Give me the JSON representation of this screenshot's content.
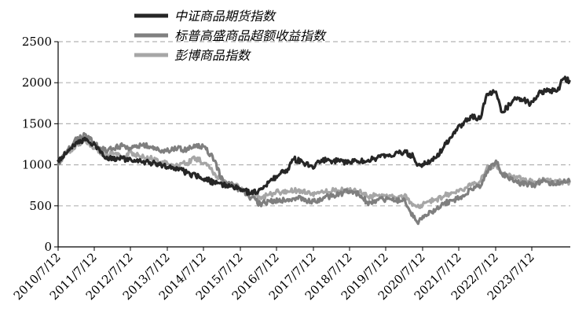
{
  "chart_data": {
    "type": "line",
    "title": "",
    "xlabel": "",
    "ylabel": "",
    "ylim": [
      0,
      2500
    ],
    "y_ticks": [
      0,
      500,
      1000,
      1500,
      2000,
      2500
    ],
    "x_tick_labels": [
      "2010/7/12",
      "2011/7/12",
      "2012/7/12",
      "2013/7/12",
      "2014/7/12",
      "2015/7/12",
      "2016/7/12",
      "2017/7/12",
      "2018/7/12",
      "2019/7/12",
      "2020/7/12",
      "2021/7/12",
      "2022/7/12",
      "2023/7/12"
    ],
    "grid": "horizontal dashed",
    "legend_position": "top-center",
    "series": [
      {
        "name": "中证商品期货指数",
        "color": "#262626",
        "points": [
          [
            "2010/7/12",
            1050
          ],
          [
            "2010/10/12",
            1150
          ],
          [
            "2011/1/12",
            1280
          ],
          [
            "2011/4/12",
            1300
          ],
          [
            "2011/7/12",
            1250
          ],
          [
            "2011/10/12",
            1100
          ],
          [
            "2012/1/12",
            1060
          ],
          [
            "2012/4/12",
            1080
          ],
          [
            "2012/7/12",
            1050
          ],
          [
            "2012/10/12",
            1040
          ],
          [
            "2013/1/12",
            1030
          ],
          [
            "2013/4/12",
            1000
          ],
          [
            "2013/7/12",
            960
          ],
          [
            "2013/10/12",
            960
          ],
          [
            "2014/1/12",
            900
          ],
          [
            "2014/4/12",
            860
          ],
          [
            "2014/7/12",
            830
          ],
          [
            "2014/10/12",
            780
          ],
          [
            "2015/1/12",
            760
          ],
          [
            "2015/4/12",
            740
          ],
          [
            "2015/7/12",
            700
          ],
          [
            "2015/10/12",
            650
          ],
          [
            "2016/1/12",
            700
          ],
          [
            "2016/4/12",
            800
          ],
          [
            "2016/7/12",
            870
          ],
          [
            "2016/10/12",
            950
          ],
          [
            "2016/12/12",
            1070
          ],
          [
            "2017/3/12",
            1030
          ],
          [
            "2017/6/12",
            980
          ],
          [
            "2017/9/12",
            1060
          ],
          [
            "2017/12/12",
            1050
          ],
          [
            "2018/3/12",
            1040
          ],
          [
            "2018/6/12",
            1030
          ],
          [
            "2018/9/12",
            1040
          ],
          [
            "2018/12/12",
            1050
          ],
          [
            "2019/3/12",
            1080
          ],
          [
            "2019/6/12",
            1120
          ],
          [
            "2019/9/12",
            1130
          ],
          [
            "2019/12/12",
            1160
          ],
          [
            "2020/3/12",
            1100
          ],
          [
            "2020/4/20",
            990
          ],
          [
            "2020/7/12",
            1010
          ],
          [
            "2020/10/12",
            1080
          ],
          [
            "2021/1/12",
            1220
          ],
          [
            "2021/4/12",
            1380
          ],
          [
            "2021/7/12",
            1500
          ],
          [
            "2021/10/12",
            1580
          ],
          [
            "2022/1/12",
            1570
          ],
          [
            "2022/3/12",
            1860
          ],
          [
            "2022/6/12",
            1890
          ],
          [
            "2022/8/12",
            1640
          ],
          [
            "2022/11/12",
            1750
          ],
          [
            "2023/1/12",
            1820
          ],
          [
            "2023/4/12",
            1780
          ],
          [
            "2023/5/12",
            1720
          ],
          [
            "2023/8/12",
            1880
          ],
          [
            "2023/11/12",
            1900
          ],
          [
            "2024/2/12",
            1900
          ],
          [
            "2024/4/12",
            2050
          ],
          [
            "2024/6/12",
            2020
          ]
        ]
      },
      {
        "name": "标普高盛商品超额收益指数",
        "color": "#7f7f7f",
        "points": [
          [
            "2010/7/12",
            1000
          ],
          [
            "2010/10/12",
            1180
          ],
          [
            "2011/1/12",
            1310
          ],
          [
            "2011/4/12",
            1370
          ],
          [
            "2011/7/12",
            1250
          ],
          [
            "2011/10/12",
            1180
          ],
          [
            "2012/1/12",
            1200
          ],
          [
            "2012/4/12",
            1230
          ],
          [
            "2012/7/12",
            1200
          ],
          [
            "2012/10/12",
            1240
          ],
          [
            "2013/1/12",
            1220
          ],
          [
            "2013/4/12",
            1170
          ],
          [
            "2013/7/12",
            1170
          ],
          [
            "2013/10/12",
            1200
          ],
          [
            "2014/1/12",
            1180
          ],
          [
            "2014/4/12",
            1240
          ],
          [
            "2014/7/12",
            1220
          ],
          [
            "2014/10/12",
            1050
          ],
          [
            "2015/1/12",
            780
          ],
          [
            "2015/4/12",
            760
          ],
          [
            "2015/7/12",
            680
          ],
          [
            "2015/10/12",
            600
          ],
          [
            "2016/1/12",
            520
          ],
          [
            "2016/4/12",
            560
          ],
          [
            "2016/7/12",
            560
          ],
          [
            "2016/10/12",
            580
          ],
          [
            "2017/1/12",
            600
          ],
          [
            "2017/4/12",
            560
          ],
          [
            "2017/7/12",
            550
          ],
          [
            "2017/10/12",
            600
          ],
          [
            "2018/1/12",
            620
          ],
          [
            "2018/4/12",
            660
          ],
          [
            "2018/7/12",
            680
          ],
          [
            "2018/10/12",
            620
          ],
          [
            "2018/12/12",
            540
          ],
          [
            "2019/3/12",
            570
          ],
          [
            "2019/6/12",
            580
          ],
          [
            "2019/9/12",
            560
          ],
          [
            "2019/12/12",
            590
          ],
          [
            "2020/3/12",
            360
          ],
          [
            "2020/4/20",
            300
          ],
          [
            "2020/7/12",
            390
          ],
          [
            "2020/10/12",
            430
          ],
          [
            "2021/1/12",
            530
          ],
          [
            "2021/4/12",
            570
          ],
          [
            "2021/7/12",
            620
          ],
          [
            "2021/10/12",
            700
          ],
          [
            "2022/1/12",
            740
          ],
          [
            "2022/3/12",
            920
          ],
          [
            "2022/6/12",
            1050
          ],
          [
            "2022/8/12",
            880
          ],
          [
            "2022/11/12",
            830
          ],
          [
            "2023/1/12",
            780
          ],
          [
            "2023/4/12",
            770
          ],
          [
            "2023/7/12",
            760
          ],
          [
            "2023/10/12",
            810
          ],
          [
            "2024/1/12",
            760
          ],
          [
            "2024/4/12",
            790
          ],
          [
            "2024/6/12",
            800
          ]
        ]
      },
      {
        "name": "彭博商品指数",
        "color": "#a6a6a6",
        "points": [
          [
            "2010/7/12",
            1010
          ],
          [
            "2010/10/12",
            1150
          ],
          [
            "2011/1/12",
            1250
          ],
          [
            "2011/4/12",
            1300
          ],
          [
            "2011/7/12",
            1200
          ],
          [
            "2011/10/12",
            1120
          ],
          [
            "2012/1/12",
            1130
          ],
          [
            "2012/4/12",
            1100
          ],
          [
            "2012/7/12",
            1150
          ],
          [
            "2012/10/12",
            1100
          ],
          [
            "2013/1/12",
            1080
          ],
          [
            "2013/4/12",
            1030
          ],
          [
            "2013/7/12",
            1010
          ],
          [
            "2013/10/12",
            1000
          ],
          [
            "2014/1/12",
            1020
          ],
          [
            "2014/4/12",
            1080
          ],
          [
            "2014/7/12",
            1020
          ],
          [
            "2014/10/12",
            900
          ],
          [
            "2015/1/12",
            780
          ],
          [
            "2015/4/12",
            770
          ],
          [
            "2015/7/12",
            720
          ],
          [
            "2015/10/12",
            650
          ],
          [
            "2016/1/12",
            600
          ],
          [
            "2016/4/12",
            640
          ],
          [
            "2016/7/12",
            670
          ],
          [
            "2016/10/12",
            670
          ],
          [
            "2017/1/12",
            690
          ],
          [
            "2017/4/12",
            660
          ],
          [
            "2017/7/12",
            650
          ],
          [
            "2017/10/12",
            670
          ],
          [
            "2018/1/12",
            690
          ],
          [
            "2018/4/12",
            690
          ],
          [
            "2018/7/12",
            680
          ],
          [
            "2018/10/12",
            660
          ],
          [
            "2018/12/12",
            610
          ],
          [
            "2019/3/12",
            630
          ],
          [
            "2019/6/12",
            620
          ],
          [
            "2019/9/12",
            600
          ],
          [
            "2019/12/12",
            620
          ],
          [
            "2020/3/12",
            520
          ],
          [
            "2020/4/20",
            490
          ],
          [
            "2020/7/12",
            540
          ],
          [
            "2020/10/12",
            570
          ],
          [
            "2021/1/12",
            620
          ],
          [
            "2021/4/12",
            660
          ],
          [
            "2021/7/12",
            690
          ],
          [
            "2021/10/12",
            760
          ],
          [
            "2022/1/12",
            800
          ],
          [
            "2022/3/12",
            960
          ],
          [
            "2022/6/12",
            1000
          ],
          [
            "2022/8/12",
            900
          ],
          [
            "2022/11/12",
            860
          ],
          [
            "2023/1/12",
            840
          ],
          [
            "2023/4/12",
            800
          ],
          [
            "2023/7/12",
            790
          ],
          [
            "2023/10/12",
            820
          ],
          [
            "2024/1/12",
            780
          ],
          [
            "2024/4/12",
            800
          ],
          [
            "2024/6/12",
            790
          ]
        ]
      }
    ]
  }
}
